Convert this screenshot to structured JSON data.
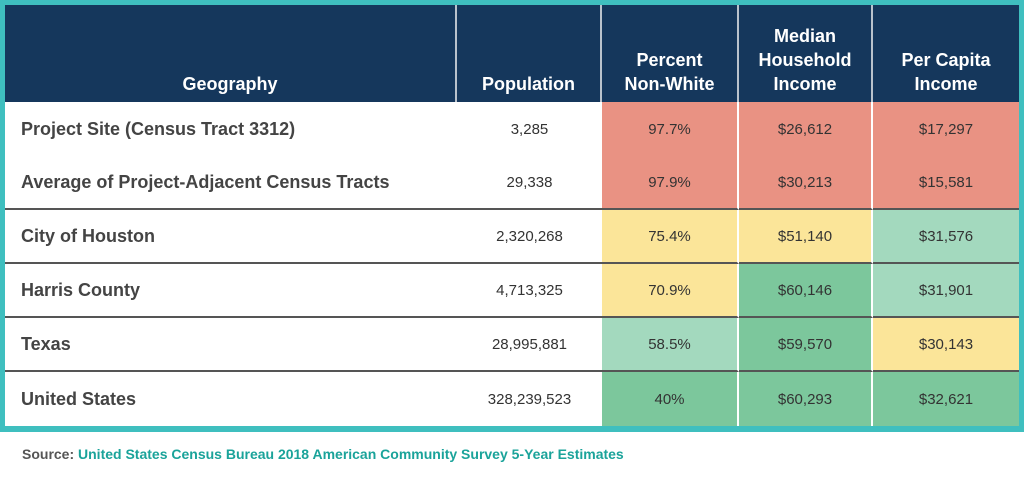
{
  "headers": {
    "geography": "Geography",
    "population": "Population",
    "percent_non_white": [
      "Percent",
      "Non-White"
    ],
    "median_household_income": [
      "Median",
      "Household",
      "Income"
    ],
    "per_capita_income": [
      "Per Capita",
      "Income"
    ]
  },
  "rows": [
    {
      "geography": "Project Site (Census Tract 3312)",
      "population": "3,285",
      "percent_non_white": "97.7%",
      "median_household_income": "$26,612",
      "per_capita_income": "$17,297",
      "colors": [
        "#e99283",
        "#e99283",
        "#e99283"
      ]
    },
    {
      "geography": "Average of Project-Adjacent Census Tracts",
      "population": "29,338",
      "percent_non_white": "97.9%",
      "median_household_income": "$30,213",
      "per_capita_income": "$15,581",
      "colors": [
        "#e99283",
        "#e99283",
        "#e99283"
      ]
    },
    {
      "geography": "City of Houston",
      "population": "2,320,268",
      "percent_non_white": "75.4%",
      "median_household_income": "$51,140",
      "per_capita_income": "$31,576",
      "colors": [
        "#fbe599",
        "#fbe599",
        "#a3d9be"
      ]
    },
    {
      "geography": "Harris County",
      "population": "4,713,325",
      "percent_non_white": "70.9%",
      "median_household_income": "$60,146",
      "per_capita_income": "$31,901",
      "colors": [
        "#fbe599",
        "#7cc79c",
        "#a3d9be"
      ]
    },
    {
      "geography": "Texas",
      "population": "28,995,881",
      "percent_non_white": "58.5%",
      "median_household_income": "$59,570",
      "per_capita_income": "$30,143",
      "colors": [
        "#a3d9be",
        "#7cc79c",
        "#fbe599"
      ]
    },
    {
      "geography": "United States",
      "population": "328,239,523",
      "percent_non_white": "40%",
      "median_household_income": "$60,293",
      "per_capita_income": "$32,621",
      "colors": [
        "#7cc79c",
        "#7cc79c",
        "#7cc79c"
      ]
    }
  ],
  "source": {
    "label": "Source:",
    "text": "United States Census Bureau 2018 American Community Survey 5-Year Estimates"
  },
  "colors": {
    "header_bg": "#15375c",
    "frame": "#3fbfbf",
    "source_text": "#1aa39a"
  }
}
